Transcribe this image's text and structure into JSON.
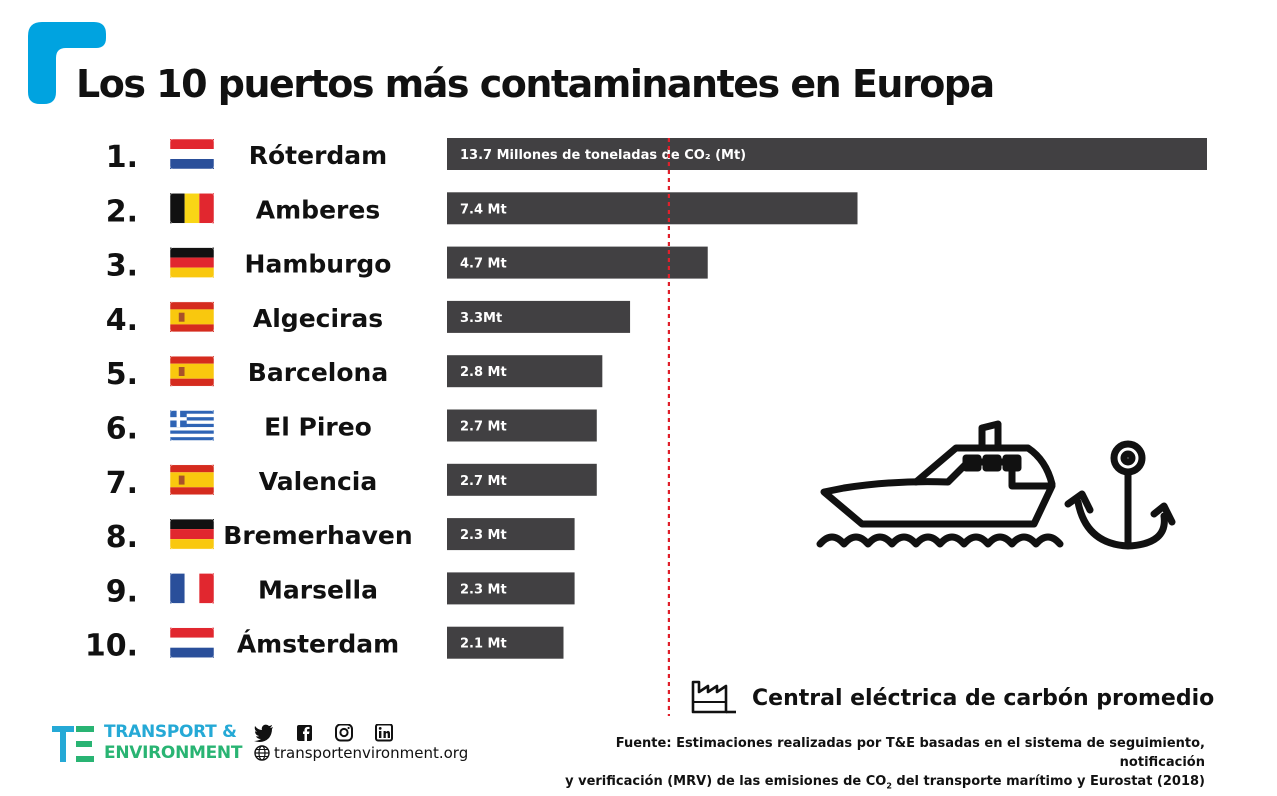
{
  "title": "Los 10 puertos más contaminantes en Europa",
  "colors": {
    "accent": "#25a9d6",
    "bar": "#414042",
    "reference_line": "#e0202b",
    "brand_blue": "#25a9d6",
    "brand_green": "#29b473"
  },
  "chart_data": {
    "type": "bar",
    "orientation": "horizontal",
    "title": "Los 10 puertos más contaminantes en Europa",
    "unit_label_first": "13.7 Millones de toneladas de CO₂ (Mt)",
    "xlim": [
      0,
      13.7
    ],
    "grid": false,
    "reference_value": 4.0,
    "reference_label": "Central eléctrica de carbón promedio",
    "items": [
      {
        "rank": "1.",
        "port": "Róterdam",
        "country_flag": "netherlands",
        "value": 13.7,
        "label": "13.7 Millones de toneladas de CO₂ (Mt)"
      },
      {
        "rank": "2.",
        "port": "Amberes",
        "country_flag": "belgium",
        "value": 7.4,
        "label": "7.4 Mt"
      },
      {
        "rank": "3.",
        "port": "Hamburgo",
        "country_flag": "germany",
        "value": 4.7,
        "label": "4.7 Mt"
      },
      {
        "rank": "4.",
        "port": "Algeciras",
        "country_flag": "spain",
        "value": 3.3,
        "label": "3.3Mt"
      },
      {
        "rank": "5.",
        "port": "Barcelona",
        "country_flag": "spain",
        "value": 2.8,
        "label": "2.8 Mt"
      },
      {
        "rank": "6.",
        "port": "El Pireo",
        "country_flag": "greece",
        "value": 2.7,
        "label": "2.7 Mt"
      },
      {
        "rank": "7.",
        "port": "Valencia",
        "country_flag": "spain",
        "value": 2.7,
        "label": "2.7 Mt"
      },
      {
        "rank": "8.",
        "port": "Bremerhaven",
        "country_flag": "germany",
        "value": 2.3,
        "label": "2.3 Mt"
      },
      {
        "rank": "9.",
        "port": "Marsella",
        "country_flag": "france",
        "value": 2.3,
        "label": "2.3 Mt"
      },
      {
        "rank": "10.",
        "port": "Ámsterdam",
        "country_flag": "netherlands",
        "value": 2.1,
        "label": "2.1 Mt"
      }
    ]
  },
  "legend": {
    "text": "Central eléctrica de carbón promedio",
    "icon": "factory-icon"
  },
  "footer": {
    "brand_line1": "TRANSPORT &",
    "brand_line2": "ENVIRONMENT",
    "website": "transportenvironment.org",
    "social_icons": [
      "twitter-icon",
      "facebook-icon",
      "instagram-icon",
      "linkedin-icon"
    ],
    "source_line1": "Fuente: Estimaciones realizadas por T&E basadas en el sistema de seguimiento, notificación",
    "source_line2a": "y verificación (MRV) de las emisiones de CO",
    "source_line2_sub": "2",
    "source_line2b": " del transporte marítimo y Eurostat (2018)"
  }
}
